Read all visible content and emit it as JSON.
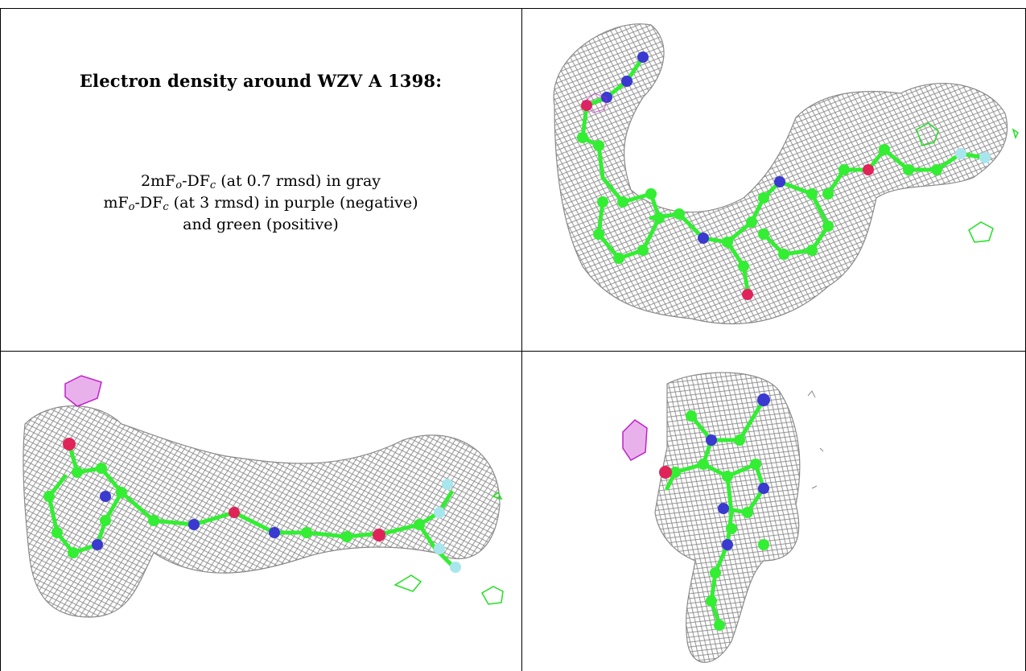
{
  "panel_text": {
    "title": "Electron density around WZV A 1398:",
    "line1_prefix": "2mF",
    "line1_sub_o": "o",
    "line1_mid": "-DF",
    "line1_sub_c": "c",
    "line1_suffix": " (at 0.7 rmsd) in gray",
    "line2_prefix": "mF",
    "line2_sub_o": "o",
    "line2_mid": "-DF",
    "line2_sub_c": "c",
    "line2_suffix": " (at 3 rmsd) in purple (negative)",
    "line3": "and green (positive)"
  },
  "colors": {
    "mesh": "#8a8a8a",
    "carbon": "#33ee33",
    "nitrogen": "#3a3ad0",
    "oxygen": "#e0245a",
    "fluorine": "#a8e6ee",
    "negative_density": "#c020c8",
    "positive_density": "#22e022",
    "border": "#000000"
  }
}
